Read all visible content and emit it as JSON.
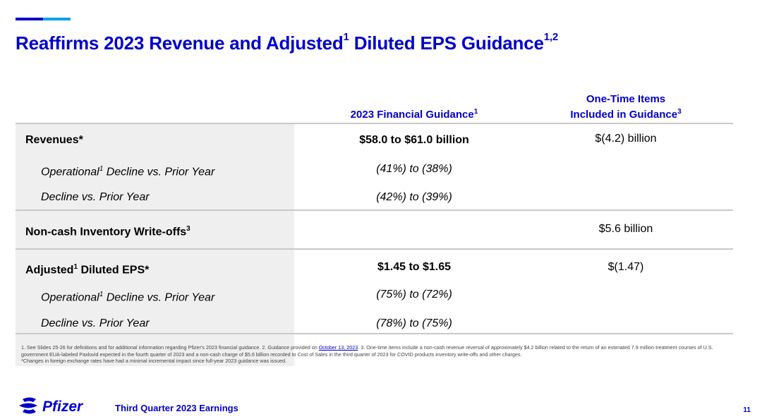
{
  "colors": {
    "brand_blue": "#0000c9",
    "accent_light_blue": "#00a3e0",
    "row_shade": "#efefef",
    "divider": "#c9c9c9"
  },
  "header": {
    "title_main": "Reaffirms 2023 Revenue and Adjusted",
    "title_sup1": "1",
    "title_mid": " Diluted EPS Guidance",
    "title_sup2": "1,2"
  },
  "table": {
    "col1_header": "2023 Financial Guidance",
    "col1_header_sup": "1",
    "col2_header_line1": "One-Time Items",
    "col2_header_line2": "Included in Guidance",
    "col2_header_sup": "3",
    "rows": [
      {
        "label": "Revenues*",
        "guidance": "$58.0 to $61.0 billion",
        "one_time": "$(4.2) billion"
      },
      {
        "label_pre": "Operational",
        "label_sup": "1",
        "label_post": " Decline vs. Prior Year",
        "guidance": "(41%) to (38%)",
        "one_time": ""
      },
      {
        "label": "Decline vs. Prior Year",
        "guidance": "(42%) to (39%)",
        "one_time": ""
      },
      {
        "label": "Non-cash Inventory Write-offs",
        "label_sup": "3",
        "guidance": "",
        "one_time": "$5.6 billion"
      },
      {
        "label_pre": "Adjusted",
        "label_sup": "1",
        "label_post": " Diluted EPS*",
        "guidance": "$1.45 to $1.65",
        "one_time": "$(1.47)"
      },
      {
        "label_pre": "Operational",
        "label_sup": "1",
        "label_post": " Decline vs. Prior Year",
        "guidance": "(75%) to (72%)",
        "one_time": ""
      },
      {
        "label": "Decline vs. Prior Year",
        "guidance": "(78%) to (75%)",
        "one_time": ""
      }
    ]
  },
  "footnote": {
    "part1": "1.  See Slides 25-26 for definitions and for additional information regarding Pfizer's 2023 financial guidance. 2. Guidance provided on ",
    "link": "October 13, 2023",
    "part2": ". 3. One-time items include a non-cash revenue reversal of approximately $4.2 billion related to the return of an estimated 7.9 million treatment courses of U.S. government EUA-labeled Paxlovid expected in the fourth quarter of 2023 and a non-cash charge of $5.6 billion recorded to Cost of Sales in the third quarter of 2023 for COVID products inventory write-offs and other charges.",
    "line2": "*Changes in foreign exchange rates have had a minimal incremental impact since full-year 2023 guidance was issued."
  },
  "footer": {
    "logo_text": "Pfizer",
    "text": "Third Quarter 2023 Earnings",
    "page_number": "11"
  }
}
